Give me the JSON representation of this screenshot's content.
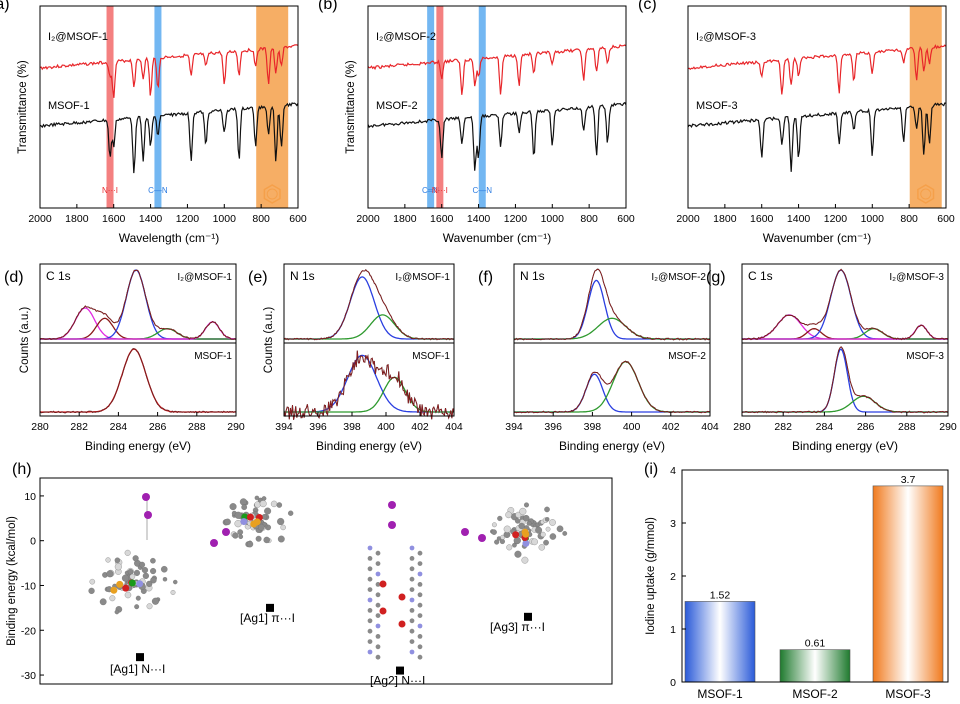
{
  "colors": {
    "red_line": "#e8262a",
    "black_line": "#111111",
    "blue_fit": "#2b3fe0",
    "green_fit": "#2f9a2f",
    "magenta_fit": "#e22ae2",
    "brown_fit": "#8b1a1a",
    "highlight_red": "#f26a6a",
    "highlight_blue": "#5aaaf0",
    "highlight_orange": "#f5a04a",
    "bar_blue": "#2a5ad8",
    "bar_green": "#1f7a2e",
    "bar_orange": "#f07a1e"
  },
  "chart_data": [
    {
      "id": "a",
      "type": "line",
      "panel_label": "(a)",
      "xlabel": "Wavelength (cm⁻¹)",
      "ylabel": "Transmittance (%)",
      "xlim": [
        2000,
        600
      ],
      "xticks": [
        "2000",
        "1800",
        "1600",
        "1400",
        "1200",
        "1000",
        "800",
        "600"
      ],
      "series": [
        {
          "name": "I₂@MSOF-1"
        },
        {
          "name": "MSOF-1"
        }
      ],
      "highlights": [
        {
          "center": 1620,
          "color": "red",
          "label": "N···I"
        },
        {
          "center": 1360,
          "color": "blue",
          "label": "C—N"
        },
        {
          "center": 740,
          "color": "orange",
          "label": "benzene-icon"
        }
      ],
      "dips": [
        1620,
        1600,
        1490,
        1440,
        1400,
        1360,
        1180,
        1100,
        1000,
        920,
        830,
        760,
        720,
        690
      ]
    },
    {
      "id": "b",
      "type": "line",
      "panel_label": "(b)",
      "xlabel": "Wavenumber (cm⁻¹)",
      "ylabel": "Transmittance (%)",
      "xlim": [
        2000,
        600
      ],
      "xticks": [
        "2000",
        "1800",
        "1600",
        "1400",
        "1200",
        "1000",
        "800",
        "600"
      ],
      "series": [
        {
          "name": "I₂@MSOF-2"
        },
        {
          "name": "MSOF-2"
        }
      ],
      "highlights": [
        {
          "center": 1660,
          "color": "blue",
          "label": "C═N"
        },
        {
          "center": 1610,
          "color": "red",
          "label": "N···I"
        },
        {
          "center": 1380,
          "color": "blue",
          "label": "C—N"
        }
      ],
      "dips": [
        1600,
        1490,
        1420,
        1400,
        1280,
        1180,
        1100,
        1000,
        830,
        760,
        700
      ]
    },
    {
      "id": "c",
      "type": "line",
      "panel_label": "(c)",
      "xlabel": "Wavenumber (cm⁻¹)",
      "ylabel": "",
      "xlim": [
        2000,
        600
      ],
      "xticks": [
        "2000",
        "1800",
        "1600",
        "1400",
        "1200",
        "1000",
        "800",
        "600"
      ],
      "series": [
        {
          "name": "I₂@MSOF-3"
        },
        {
          "name": "MSOF-3"
        }
      ],
      "highlights": [
        {
          "center": 710,
          "color": "orange",
          "label": "benzene-icon"
        }
      ],
      "dips": [
        1600,
        1490,
        1440,
        1400,
        1180,
        1100,
        1000,
        830,
        760,
        720,
        690
      ]
    },
    {
      "id": "d",
      "type": "line",
      "panel_label": "(d)",
      "element": "C 1s",
      "top_label": "I₂@MSOF-1",
      "bottom_label": "MSOF-1",
      "xlabel": "Binding energy (eV)",
      "ylabel": "Counts (a.u.)",
      "xlim": [
        280,
        290
      ],
      "xticks": [
        "280",
        "282",
        "284",
        "286",
        "288",
        "290"
      ],
      "top_peaks": [
        {
          "c": 282.3,
          "h": 0.45,
          "w": 0.7,
          "color": "magenta"
        },
        {
          "c": 283.3,
          "h": 0.3,
          "w": 0.6,
          "color": "brown"
        },
        {
          "c": 284.9,
          "h": 1.0,
          "w": 0.7,
          "color": "blue"
        },
        {
          "c": 286.5,
          "h": 0.15,
          "w": 0.7,
          "color": "green"
        },
        {
          "c": 288.8,
          "h": 0.25,
          "w": 0.5,
          "color": "magenta"
        }
      ],
      "bottom_peaks": [
        {
          "c": 284.8,
          "h": 1.0,
          "w": 0.85,
          "color": "red"
        }
      ]
    },
    {
      "id": "e",
      "type": "line",
      "panel_label": "(e)",
      "element": "N 1s",
      "top_label": "I₂@MSOF-1",
      "bottom_label": "MSOF-1",
      "xlabel": "Binding energy (eV)",
      "ylabel": "Counts (a.u.)",
      "xlim": [
        394,
        404
      ],
      "xticks": [
        "394",
        "396",
        "398",
        "400",
        "402",
        "404"
      ],
      "top_peaks": [
        {
          "c": 398.6,
          "h": 0.9,
          "w": 1.0,
          "color": "blue"
        },
        {
          "c": 399.8,
          "h": 0.35,
          "w": 1.0,
          "color": "green"
        }
      ],
      "bottom_peaks": [
        {
          "c": 398.6,
          "h": 0.9,
          "w": 1.2,
          "color": "blue"
        },
        {
          "c": 400.5,
          "h": 0.55,
          "w": 0.9,
          "color": "green"
        }
      ]
    },
    {
      "id": "f",
      "type": "line",
      "panel_label": "(f)",
      "element": "N 1s",
      "top_label": "I₂@MSOF-2",
      "bottom_label": "MSOF-2",
      "xlabel": "Binding energy (eV)",
      "ylabel": "",
      "xlim": [
        394,
        404
      ],
      "xticks": [
        "394",
        "396",
        "398",
        "400",
        "402",
        "404"
      ],
      "top_peaks": [
        {
          "c": 398.2,
          "h": 0.85,
          "w": 0.6,
          "color": "blue"
        },
        {
          "c": 399.0,
          "h": 0.3,
          "w": 1.0,
          "color": "green"
        }
      ],
      "bottom_peaks": [
        {
          "c": 398.1,
          "h": 0.6,
          "w": 0.6,
          "color": "blue"
        },
        {
          "c": 399.7,
          "h": 0.8,
          "w": 0.9,
          "color": "green"
        }
      ]
    },
    {
      "id": "g",
      "type": "line",
      "panel_label": "(g)",
      "element": "C 1s",
      "top_label": "I₂@MSOF-3",
      "bottom_label": "MSOF-3",
      "xlabel": "Binding energy (eV)",
      "ylabel": "",
      "xlim": [
        280,
        290
      ],
      "xticks": [
        "280",
        "282",
        "284",
        "286",
        "288",
        "290"
      ],
      "top_peaks": [
        {
          "c": 282.3,
          "h": 0.35,
          "w": 0.8,
          "color": "magenta"
        },
        {
          "c": 283.5,
          "h": 0.15,
          "w": 0.5,
          "color": "brown"
        },
        {
          "c": 284.8,
          "h": 1.0,
          "w": 0.7,
          "color": "blue"
        },
        {
          "c": 286.4,
          "h": 0.15,
          "w": 0.6,
          "color": "green"
        },
        {
          "c": 288.7,
          "h": 0.2,
          "w": 0.4,
          "color": "magenta"
        }
      ],
      "bottom_peaks": [
        {
          "c": 284.8,
          "h": 1.0,
          "w": 0.45,
          "color": "blue"
        },
        {
          "c": 285.9,
          "h": 0.25,
          "w": 0.8,
          "color": "green"
        }
      ]
    },
    {
      "id": "h",
      "type": "scatter",
      "panel_label": "(h)",
      "ylabel": "Binding energy (kcal/mol)",
      "ylim": [
        -32,
        14
      ],
      "yticks": [
        "10",
        "0",
        "-10",
        "-20",
        "-30"
      ],
      "points": [
        {
          "label": "[Ag1] N···I",
          "y": -26
        },
        {
          "label": "[Ag1] π···I",
          "y": -15
        },
        {
          "label": "[Ag2] N···I",
          "y": -29
        },
        {
          "label": "[Ag3] π···I",
          "y": -17
        }
      ]
    },
    {
      "id": "i",
      "type": "bar",
      "panel_label": "(i)",
      "categories": [
        "MSOF-1",
        "MSOF-2",
        "MSOF-3"
      ],
      "values": [
        1.52,
        0.61,
        3.7
      ],
      "value_labels": [
        "1.52",
        "0.61",
        "3.7"
      ],
      "ylabel": "Iodine uptake (g/mmol)",
      "ylim": [
        0,
        4
      ],
      "yticks": [
        "0",
        "1",
        "2",
        "3",
        "4"
      ]
    }
  ]
}
